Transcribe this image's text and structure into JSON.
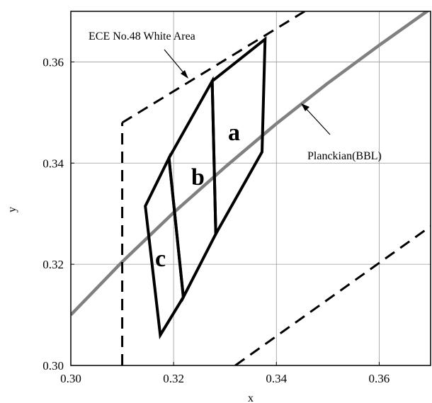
{
  "chart_data": {
    "type": "line",
    "title": "",
    "xlabel": "x",
    "ylabel": "y",
    "xlim": [
      0.3,
      0.37
    ],
    "ylim": [
      0.3,
      0.37
    ],
    "xticks": [
      0.3,
      0.32,
      0.34,
      0.36
    ],
    "yticks": [
      0.3,
      0.32,
      0.34,
      0.36
    ],
    "x_tick_labels": [
      "0.30",
      "0.32",
      "0.34",
      "0.36"
    ],
    "y_tick_labels": [
      "0.30",
      "0.32",
      "0.34",
      "0.36"
    ],
    "grid": true,
    "planckian": {
      "label": "Planckian(BBL)",
      "color": "#808080",
      "points": [
        [
          0.3,
          0.31
        ],
        [
          0.31,
          0.3205
        ],
        [
          0.32,
          0.3302
        ],
        [
          0.33,
          0.3392
        ],
        [
          0.34,
          0.3478
        ],
        [
          0.35,
          0.3558
        ],
        [
          0.36,
          0.3633
        ],
        [
          0.37,
          0.3705
        ]
      ]
    },
    "white_area": {
      "label": "ECE No.48 White Area",
      "style": "dashed",
      "left_edge": [
        [
          0.31,
          0.3
        ],
        [
          0.31,
          0.348
        ]
      ],
      "upper_edge": [
        [
          0.31,
          0.348
        ],
        [
          0.3455,
          0.37
        ]
      ],
      "lower_edge": [
        [
          0.332,
          0.3
        ],
        [
          0.37,
          0.3275
        ]
      ]
    },
    "regions": [
      {
        "label": "a",
        "polygon": [
          [
            0.3275,
            0.3562
          ],
          [
            0.3378,
            0.3645
          ],
          [
            0.3372,
            0.3422
          ],
          [
            0.3282,
            0.326
          ]
        ]
      },
      {
        "label": "b",
        "polygon": [
          [
            0.3191,
            0.341
          ],
          [
            0.3275,
            0.3562
          ],
          [
            0.3282,
            0.326
          ],
          [
            0.3219,
            0.3135
          ]
        ]
      },
      {
        "label": "c",
        "polygon": [
          [
            0.3145,
            0.3315
          ],
          [
            0.3191,
            0.341
          ],
          [
            0.3219,
            0.3135
          ],
          [
            0.3174,
            0.306
          ]
        ]
      }
    ]
  }
}
